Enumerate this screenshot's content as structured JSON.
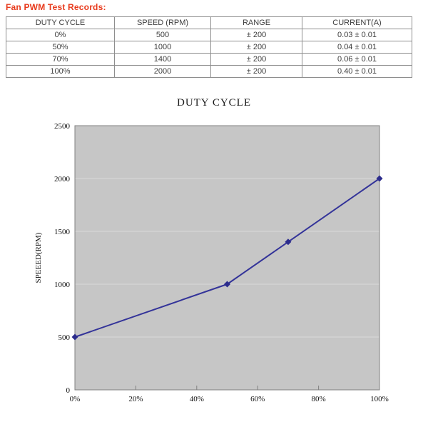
{
  "page": {
    "title": "Fan PWM Test Records:"
  },
  "table": {
    "headers": [
      "DUTY CYCLE",
      "SPEED (RPM)",
      "RANGE",
      "CURRENT(A)"
    ],
    "rows": [
      [
        "0%",
        "500",
        "± 200",
        "0.03 ± 0.01"
      ],
      [
        "50%",
        "1000",
        "± 200",
        "0.04 ± 0.01"
      ],
      [
        "70%",
        "1400",
        "± 200",
        "0.06 ± 0.01"
      ],
      [
        "100%",
        "2000",
        "± 200",
        "0.40 ± 0.01"
      ]
    ]
  },
  "chart_data": {
    "type": "line",
    "title": "DUTY CYCLE",
    "xlabel": "",
    "ylabel": "SPEEED(RPM)",
    "x": [
      0,
      50,
      70,
      100
    ],
    "values": [
      500,
      1000,
      1400,
      2000
    ],
    "xlim": [
      0,
      100
    ],
    "ylim": [
      0,
      2500
    ],
    "x_tick_values": [
      0,
      20,
      40,
      60,
      80,
      100
    ],
    "x_ticks": [
      "0%",
      "20%",
      "40%",
      "60%",
      "80%",
      "100%"
    ],
    "y_ticks": [
      0,
      500,
      1000,
      1500,
      2000,
      2500
    ],
    "grid": true,
    "legend": "none",
    "marker": "diamond",
    "colors": {
      "line": "#333399",
      "marker": "#2c2c8c",
      "plot_bg": "#c6c6c6",
      "gridline": "#d9d9d9",
      "frame": "#808080",
      "tick": "#808080"
    }
  },
  "colors": {
    "heading": "#e83a1c",
    "table_border": "#8e8e8e",
    "table_text": "#3d3d3d"
  }
}
